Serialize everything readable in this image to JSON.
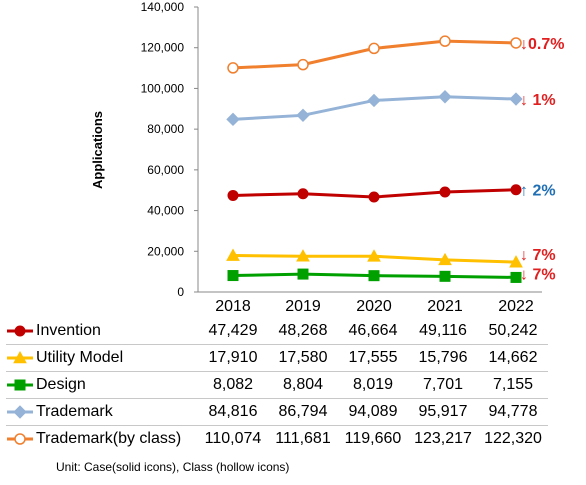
{
  "chart_data": {
    "type": "line",
    "categories": [
      "2018",
      "2019",
      "2020",
      "2021",
      "2022"
    ],
    "ylabel": "Applications",
    "ylim": [
      0,
      140000
    ],
    "yticks": [
      "0",
      "20,000",
      "40,000",
      "60,000",
      "80,000",
      "100,000",
      "120,000",
      "140,000"
    ],
    "grid": false,
    "series": [
      {
        "name": "Invention",
        "values": [
          47429,
          48268,
          46664,
          49116,
          50242
        ],
        "labels": [
          "47,429",
          "48,268",
          "46,664",
          "49,116",
          "50,242"
        ],
        "color": "#c00000",
        "marker": "circle",
        "hollow": false,
        "change": "↑ 2%",
        "change_color": "#1f6fb5"
      },
      {
        "name": "Utility Model",
        "values": [
          17910,
          17580,
          17555,
          15796,
          14662
        ],
        "labels": [
          "17,910",
          "17,580",
          "17,555",
          "15,796",
          "14,662"
        ],
        "color": "#ffc000",
        "marker": "triangle",
        "hollow": false,
        "change": "↓ 7%",
        "change_color": "#e02020"
      },
      {
        "name": "Design",
        "values": [
          8082,
          8804,
          8019,
          7701,
          7155
        ],
        "labels": [
          "8,082",
          "8,804",
          "8,019",
          "7,701",
          "7,155"
        ],
        "color": "#00a000",
        "marker": "square",
        "hollow": false,
        "change": "↓ 7%",
        "change_color": "#e02020"
      },
      {
        "name": "Trademark",
        "values": [
          84816,
          86794,
          94089,
          95917,
          94778
        ],
        "labels": [
          "84,816",
          "86,794",
          "94,089",
          "95,917",
          "94,778"
        ],
        "color": "#95b3d7",
        "marker": "diamond",
        "hollow": false,
        "change": "↓ 1%",
        "change_color": "#e02020"
      },
      {
        "name": "Trademark(by class)",
        "values": [
          110074,
          111681,
          119660,
          123217,
          122320
        ],
        "labels": [
          "110,074",
          "111,681",
          "119,660",
          "123,217",
          "122,320"
        ],
        "color": "#f07f2e",
        "marker": "circle",
        "hollow": true,
        "change": "↓0.7%",
        "change_color": "#e02020"
      }
    ],
    "note": "Unit: Case(solid icons), Class (hollow icons)"
  }
}
